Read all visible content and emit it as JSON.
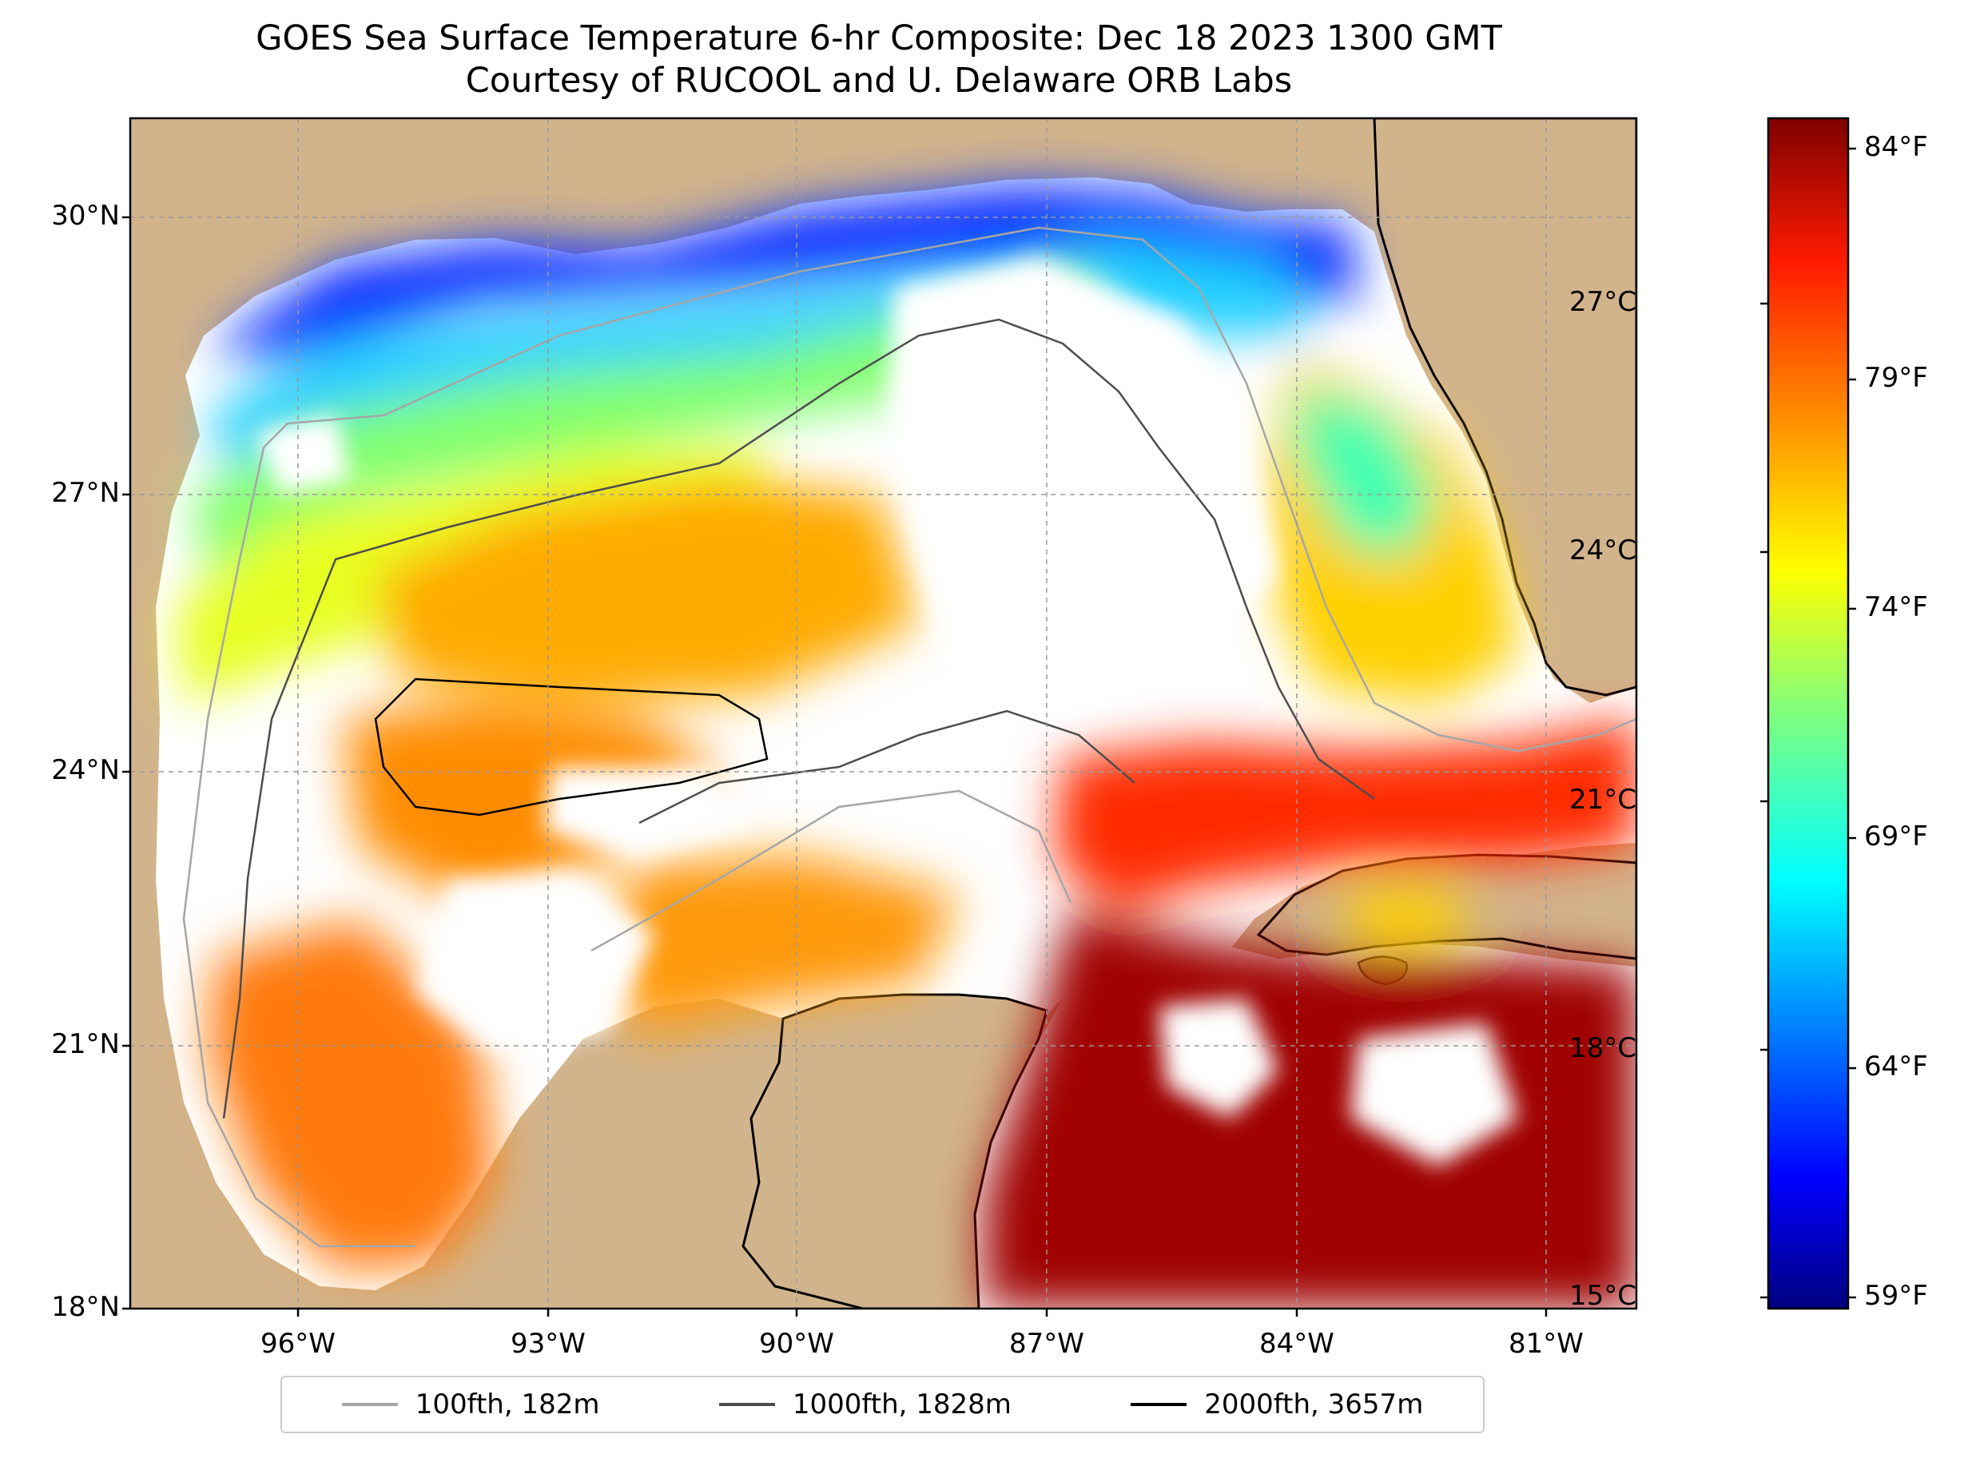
{
  "title": {
    "line1": "GOES Sea Surface Temperature 6-hr Composite: Dec 18 2023 1300 GMT",
    "line2": "Courtesy of RUCOOL and U. Delaware ORB Labs"
  },
  "map": {
    "lat_ticks": [
      "30°N",
      "27°N",
      "24°N",
      "21°N",
      "18°N"
    ],
    "lon_ticks": [
      "96°W",
      "93°W",
      "90°W",
      "87°W",
      "84°W",
      "81°W"
    ],
    "land_color": "#d2b48c",
    "lake_color": "#9db9e8",
    "nodata_color": "#ffffff"
  },
  "colorbar": {
    "colormap": "jet",
    "celsius_ticks": [
      "27°C",
      "24°C",
      "21°C",
      "18°C",
      "15°C"
    ],
    "fahrenheit_ticks": [
      "84°F",
      "79°F",
      "74°F",
      "69°F",
      "64°F",
      "59°F"
    ]
  },
  "legend": {
    "items": [
      {
        "label": "100fth, 182m",
        "color": "#a6a6a6"
      },
      {
        "label": "1000fth, 1828m",
        "color": "#4d4d4d"
      },
      {
        "label": "2000fth, 3657m",
        "color": "#000000"
      }
    ]
  }
}
